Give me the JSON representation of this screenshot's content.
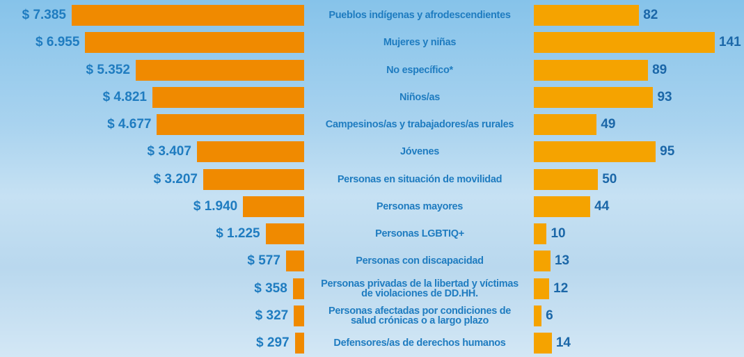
{
  "chart_data": {
    "type": "butterfly-bar",
    "categories": [
      "Pueblos indígenas y afrodescendientes",
      "Mujeres y niñas",
      "No específico*",
      "Niños/as",
      "Campesinos/as y trabajadores/as rurales",
      "Jóvenes",
      "Personas en situación de movilidad",
      "Personas mayores",
      "Personas LGBTIQ+",
      "Personas con discapacidad",
      "Personas privadas de la libertad y víctimas de violaciones de DD.HH.",
      "Personas afectadas por condiciones de salud crónicas o a largo plazo",
      "Defensores/as de derechos humanos"
    ],
    "series": [
      {
        "color": "#f08a00",
        "values": [
          7385,
          6955,
          5352,
          4821,
          4677,
          3407,
          3207,
          1940,
          1225,
          577,
          358,
          327,
          297
        ],
        "value_labels": [
          "$ 7.385",
          "$ 6.955",
          "$ 5.352",
          "$ 4.821",
          "$ 4.677",
          "$ 3.407",
          "$ 3.207",
          "$ 1.940",
          "$ 1.225",
          "$ 577",
          "$ 358",
          "$ 327",
          "$ 297"
        ]
      },
      {
        "color": "#f5a300",
        "values": [
          82,
          141,
          89,
          93,
          49,
          95,
          50,
          44,
          10,
          13,
          12,
          6,
          14
        ]
      }
    ]
  }
}
